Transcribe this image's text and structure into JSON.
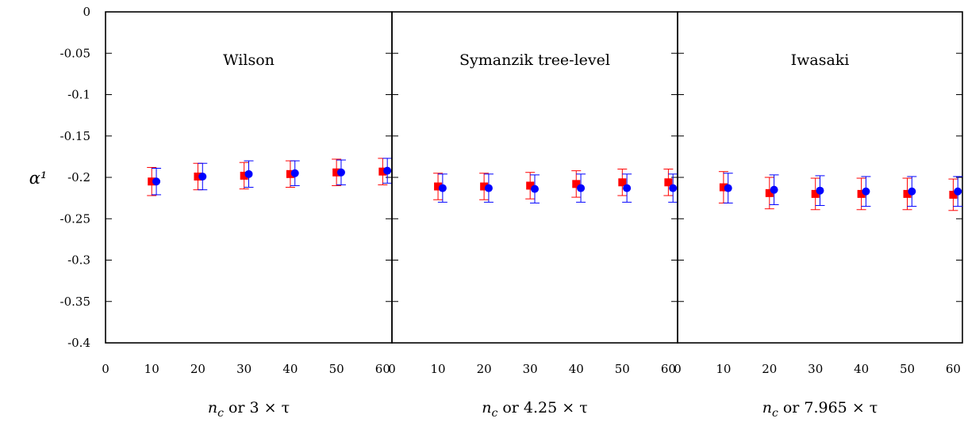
{
  "chart_data": {
    "type": "scatter",
    "ylabel": "α¹",
    "ylim": [
      -0.4,
      0
    ],
    "xlim": [
      0,
      62
    ],
    "y_ticks": [
      "0",
      "-0.05",
      "-0.1",
      "-0.15",
      "-0.2",
      "-0.25",
      "-0.3",
      "-0.35",
      "-0.4"
    ],
    "y_tick_values": [
      0,
      -0.05,
      -0.1,
      -0.15,
      -0.2,
      -0.25,
      -0.3,
      -0.35,
      -0.4
    ],
    "x_tick_values": [
      0,
      10,
      20,
      30,
      40,
      50,
      60
    ],
    "x_ticks": [
      "0",
      "10",
      "20",
      "30",
      "40",
      "50",
      "60"
    ],
    "grid": false,
    "legend": "none",
    "colors": {
      "red": "#ff0000",
      "blue": "#0000ff"
    },
    "panels": [
      {
        "title": "Wilson",
        "xlabel_var": "n",
        "xlabel_sub": "c",
        "xlabel_rest": " or 3 × τ",
        "series": [
          {
            "color": "red",
            "marker": "square",
            "x": [
              10,
              20,
              30,
              40,
              50,
              60
            ],
            "y": [
              -0.205,
              -0.199,
              -0.198,
              -0.196,
              -0.194,
              -0.193
            ],
            "err": [
              0.017,
              0.016,
              0.016,
              0.016,
              0.016,
              0.016
            ]
          },
          {
            "color": "blue",
            "marker": "circle",
            "x": [
              11,
              21,
              31,
              41,
              51,
              61
            ],
            "y": [
              -0.205,
              -0.199,
              -0.196,
              -0.195,
              -0.194,
              -0.192
            ],
            "err": [
              0.016,
              0.016,
              0.016,
              0.015,
              0.015,
              0.015
            ]
          }
        ]
      },
      {
        "title": "Symanzik tree-level",
        "xlabel_var": "n",
        "xlabel_sub": "c",
        "xlabel_rest": " or 4.25 × τ",
        "series": [
          {
            "color": "red",
            "marker": "square",
            "x": [
              10,
              20,
              30,
              40,
              50,
              60
            ],
            "y": [
              -0.211,
              -0.211,
              -0.21,
              -0.208,
              -0.206,
              -0.206
            ],
            "err": [
              0.016,
              0.016,
              0.016,
              0.016,
              0.016,
              0.016
            ]
          },
          {
            "color": "blue",
            "marker": "circle",
            "x": [
              11,
              21,
              31,
              41,
              51,
              61
            ],
            "y": [
              -0.213,
              -0.213,
              -0.214,
              -0.213,
              -0.213,
              -0.213
            ],
            "err": [
              0.017,
              0.017,
              0.017,
              0.017,
              0.017,
              0.017
            ]
          }
        ]
      },
      {
        "title": "Iwasaki",
        "xlabel_var": "n",
        "xlabel_sub": "c",
        "xlabel_rest": " or 7.965 × τ",
        "series": [
          {
            "color": "red",
            "marker": "square",
            "x": [
              10,
              20,
              30,
              40,
              50,
              60
            ],
            "y": [
              -0.212,
              -0.219,
              -0.22,
              -0.22,
              -0.22,
              -0.221
            ],
            "err": [
              0.019,
              0.019,
              0.019,
              0.019,
              0.019,
              0.019
            ]
          },
          {
            "color": "blue",
            "marker": "circle",
            "x": [
              11,
              21,
              31,
              41,
              51,
              61
            ],
            "y": [
              -0.213,
              -0.215,
              -0.216,
              -0.217,
              -0.217,
              -0.217
            ],
            "err": [
              0.018,
              0.018,
              0.018,
              0.018,
              0.018,
              0.018
            ]
          }
        ]
      }
    ]
  }
}
